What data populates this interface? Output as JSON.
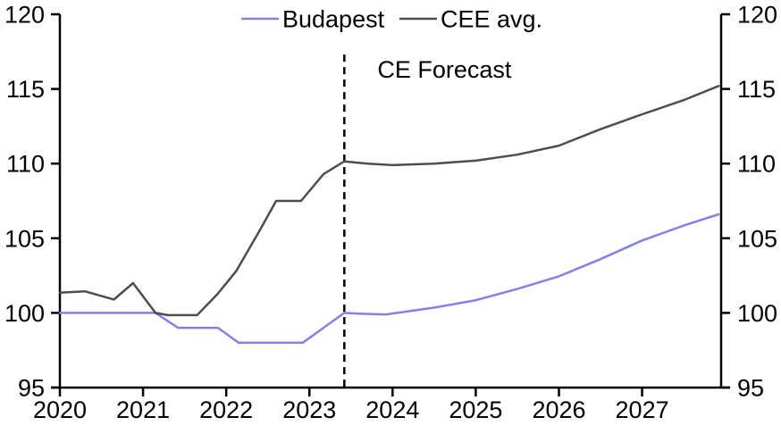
{
  "chart_data": {
    "type": "line",
    "title": "",
    "background_color": "#ffffff",
    "axis_color": "#000000",
    "grid": false,
    "legend_position": "top-center",
    "x_axis": {
      "min": 2020,
      "max": 2027.95,
      "ticks": [
        2020,
        2021,
        2022,
        2023,
        2024,
        2025,
        2026,
        2027
      ]
    },
    "y_axis": {
      "min": 95,
      "max": 120,
      "sides": "both",
      "ticks": [
        95,
        100,
        105,
        110,
        115,
        120
      ]
    },
    "annotation": {
      "label": "CE Forecast",
      "x": 2023.42,
      "y_top": 117.3,
      "line_style": "dashed",
      "color": "#000000"
    },
    "series": [
      {
        "name": "Budapest",
        "color": "#8181e8",
        "points": [
          [
            2020.0,
            100.0
          ],
          [
            2021.15,
            100.0
          ],
          [
            2021.42,
            99.0
          ],
          [
            2021.9,
            99.0
          ],
          [
            2022.15,
            98.0
          ],
          [
            2022.92,
            98.0
          ],
          [
            2023.42,
            100.0
          ],
          [
            2023.6,
            99.95
          ],
          [
            2023.92,
            99.9
          ],
          [
            2024.5,
            100.35
          ],
          [
            2025.0,
            100.85
          ],
          [
            2025.5,
            101.6
          ],
          [
            2026.0,
            102.45
          ],
          [
            2026.5,
            103.6
          ],
          [
            2027.0,
            104.85
          ],
          [
            2027.5,
            105.85
          ],
          [
            2027.92,
            106.6
          ]
        ]
      },
      {
        "name": "CEE avg.",
        "color": "#4d4d4d",
        "points": [
          [
            2020.0,
            101.35
          ],
          [
            2020.3,
            101.45
          ],
          [
            2020.65,
            100.9
          ],
          [
            2020.88,
            102.0
          ],
          [
            2021.15,
            100.0
          ],
          [
            2021.3,
            99.85
          ],
          [
            2021.65,
            99.85
          ],
          [
            2021.9,
            101.3
          ],
          [
            2022.12,
            102.8
          ],
          [
            2022.42,
            105.7
          ],
          [
            2022.6,
            107.5
          ],
          [
            2022.9,
            107.5
          ],
          [
            2023.17,
            109.3
          ],
          [
            2023.42,
            110.15
          ],
          [
            2023.7,
            110.0
          ],
          [
            2024.0,
            109.9
          ],
          [
            2024.5,
            110.0
          ],
          [
            2025.0,
            110.2
          ],
          [
            2025.5,
            110.6
          ],
          [
            2026.0,
            111.2
          ],
          [
            2026.5,
            112.3
          ],
          [
            2027.0,
            113.3
          ],
          [
            2027.5,
            114.25
          ],
          [
            2027.92,
            115.2
          ]
        ]
      }
    ]
  }
}
